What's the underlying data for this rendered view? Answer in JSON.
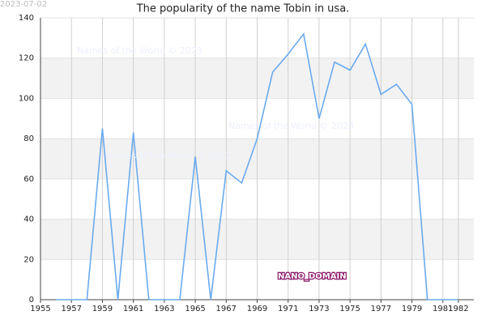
{
  "chart_data": {
    "type": "line",
    "title": "The popularity of the name Tobin in usa.",
    "date_stamp": "2023-07-02",
    "watermarks": [
      "Names of the World © 2023",
      "Names of the World © 2023",
      "Names of the World © 2023"
    ],
    "brand": "NANO_DOMAIN",
    "x": [
      1956,
      1957,
      1958,
      1959,
      1960,
      1961,
      1962,
      1963,
      1964,
      1965,
      1966,
      1967,
      1968,
      1969,
      1970,
      1971,
      1972,
      1973,
      1974,
      1975,
      1976,
      1977,
      1978,
      1979,
      1980,
      1981,
      1982
    ],
    "series": [
      {
        "name": "Tobin",
        "color": "#6aaaee",
        "values": [
          0,
          0,
          0,
          85,
          0,
          83,
          0,
          0,
          0,
          71,
          0,
          64,
          58,
          80,
          113,
          122,
          132,
          90,
          118,
          114,
          127,
          102,
          107,
          97,
          0,
          0,
          0
        ]
      }
    ],
    "xlim": [
      1955,
      1983
    ],
    "xticks": [
      1955,
      1957,
      1959,
      1961,
      1963,
      1965,
      1967,
      1969,
      1971,
      1973,
      1975,
      1977,
      1979,
      1981,
      1982
    ],
    "ylim": [
      0,
      140
    ],
    "yticks": [
      0,
      20,
      40,
      60,
      80,
      100,
      120,
      140
    ],
    "grid": true
  }
}
